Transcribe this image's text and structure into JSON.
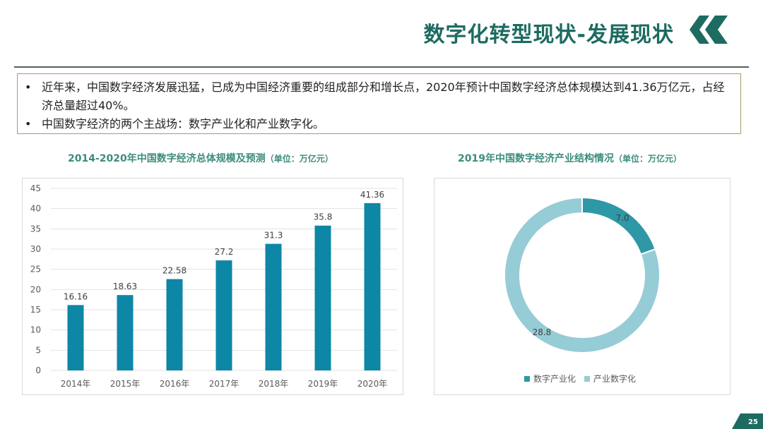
{
  "header": {
    "title": "数字化转型现状-发展现状",
    "page_number": "25"
  },
  "colors": {
    "primary": "#1d6b61",
    "bar": "#0e86a6",
    "ring_light": "#96ccd6",
    "ring_dark": "#2e98a6"
  },
  "summary": {
    "bullets": [
      "近年来，中国数字经济发展迅猛，已成为中国经济重要的组成部分和增长点，2020年预计中国数字经济总体规模达到41.36万亿元，占经济总量超过40%。",
      "中国数字经济的两个主战场：数字产业化和产业数字化。"
    ]
  },
  "chart_data": [
    {
      "type": "bar",
      "title": "2014-2020年中国数字经济总体规模及预测",
      "title_unit": "（单位：万亿元）",
      "categories": [
        "2014年",
        "2015年",
        "2016年",
        "2017年",
        "2018年",
        "2019年",
        "2020年"
      ],
      "values": [
        16.16,
        18.63,
        22.58,
        27.2,
        31.3,
        35.8,
        41.36
      ],
      "value_labels": [
        "16.16",
        "18.63",
        "22.58",
        "27.2",
        "31.3",
        "35.8",
        "41.36"
      ],
      "ylim": [
        0,
        45
      ],
      "yticks": [
        "0",
        "5",
        "10",
        "15",
        "20",
        "25",
        "30",
        "35",
        "40",
        "45"
      ],
      "grid": true,
      "xlabel": "",
      "ylabel": ""
    },
    {
      "type": "pie",
      "title": "2019年中国数字经济产业结构情况",
      "title_unit": "（单位：万亿元）",
      "slices": [
        {
          "name": "数字产业化",
          "value": 7.0,
          "label": "7.0"
        },
        {
          "name": "产业数字化",
          "value": 28.8,
          "label": "28.8"
        }
      ],
      "donut": true,
      "legend": "bottom"
    }
  ]
}
